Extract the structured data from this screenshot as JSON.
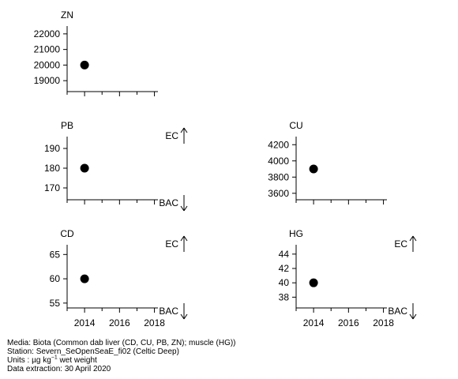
{
  "chart_data": [
    {
      "type": "scatter",
      "title": "ZN",
      "x": [
        2014
      ],
      "y": [
        20000
      ],
      "xlim": [
        2013,
        2018.2
      ],
      "ylim": [
        18300,
        22500
      ],
      "yticks": [
        19000,
        20000,
        21000,
        22000
      ],
      "ytick_labels": [
        "19000",
        "20000",
        "21000",
        "22000"
      ],
      "xticks": [
        2014,
        2016,
        2018
      ],
      "xtick_labels": [],
      "markers": []
    },
    {
      "type": "scatter",
      "title": "PB",
      "x": [
        2014
      ],
      "y": [
        180
      ],
      "xlim": [
        2013,
        2018.2
      ],
      "ylim": [
        164,
        196
      ],
      "yticks": [
        170,
        180,
        190
      ],
      "ytick_labels": [
        "170",
        "180",
        "190"
      ],
      "xticks": [
        2014,
        2016,
        2018
      ],
      "xtick_labels": [],
      "markers": [
        {
          "label": "EC",
          "direction": "up"
        },
        {
          "label": "BAC",
          "direction": "down"
        }
      ]
    },
    {
      "type": "scatter",
      "title": "CU",
      "x": [
        2014
      ],
      "y": [
        3900
      ],
      "xlim": [
        2013,
        2018.2
      ],
      "ylim": [
        3520,
        4300
      ],
      "yticks": [
        3600,
        3800,
        4000,
        4200
      ],
      "ytick_labels": [
        "3600",
        "3800",
        "4000",
        "4200"
      ],
      "xticks": [
        2014,
        2016,
        2018
      ],
      "xtick_labels": [],
      "markers": []
    },
    {
      "type": "scatter",
      "title": "CD",
      "x": [
        2014
      ],
      "y": [
        60
      ],
      "xlim": [
        2013,
        2018.2
      ],
      "ylim": [
        54,
        67
      ],
      "yticks": [
        55,
        60,
        65
      ],
      "ytick_labels": [
        "55",
        "60",
        "65"
      ],
      "xticks": [
        2014,
        2016,
        2018
      ],
      "xtick_labels": [
        "2014",
        "2016",
        "2018"
      ],
      "markers": [
        {
          "label": "EC",
          "direction": "up"
        },
        {
          "label": "BAC",
          "direction": "down"
        }
      ]
    },
    {
      "type": "scatter",
      "title": "HG",
      "x": [
        2014
      ],
      "y": [
        40
      ],
      "xlim": [
        2013,
        2018.2
      ],
      "ylim": [
        36.5,
        45.3
      ],
      "yticks": [
        38,
        40,
        42,
        44
      ],
      "ytick_labels": [
        "38",
        "40",
        "42",
        "44"
      ],
      "xticks": [
        2014,
        2016,
        2018
      ],
      "xtick_labels": [
        "2014",
        "2016",
        "2018"
      ],
      "markers": [
        {
          "label": "EC",
          "direction": "up"
        },
        {
          "label": "BAC",
          "direction": "down"
        }
      ]
    }
  ],
  "footer": {
    "media": "Media: Biota (Common dab liver (CD, CU, PB, ZN); muscle (HG))",
    "station": "Station: Severn_SeOpenSeaE_fi02 (Celtic Deep)",
    "units_prefix": "Units : µg kg",
    "units_exponent": "−1",
    "units_suffix": " wet weight",
    "extraction": "Data extraction: 30 April 2020"
  }
}
